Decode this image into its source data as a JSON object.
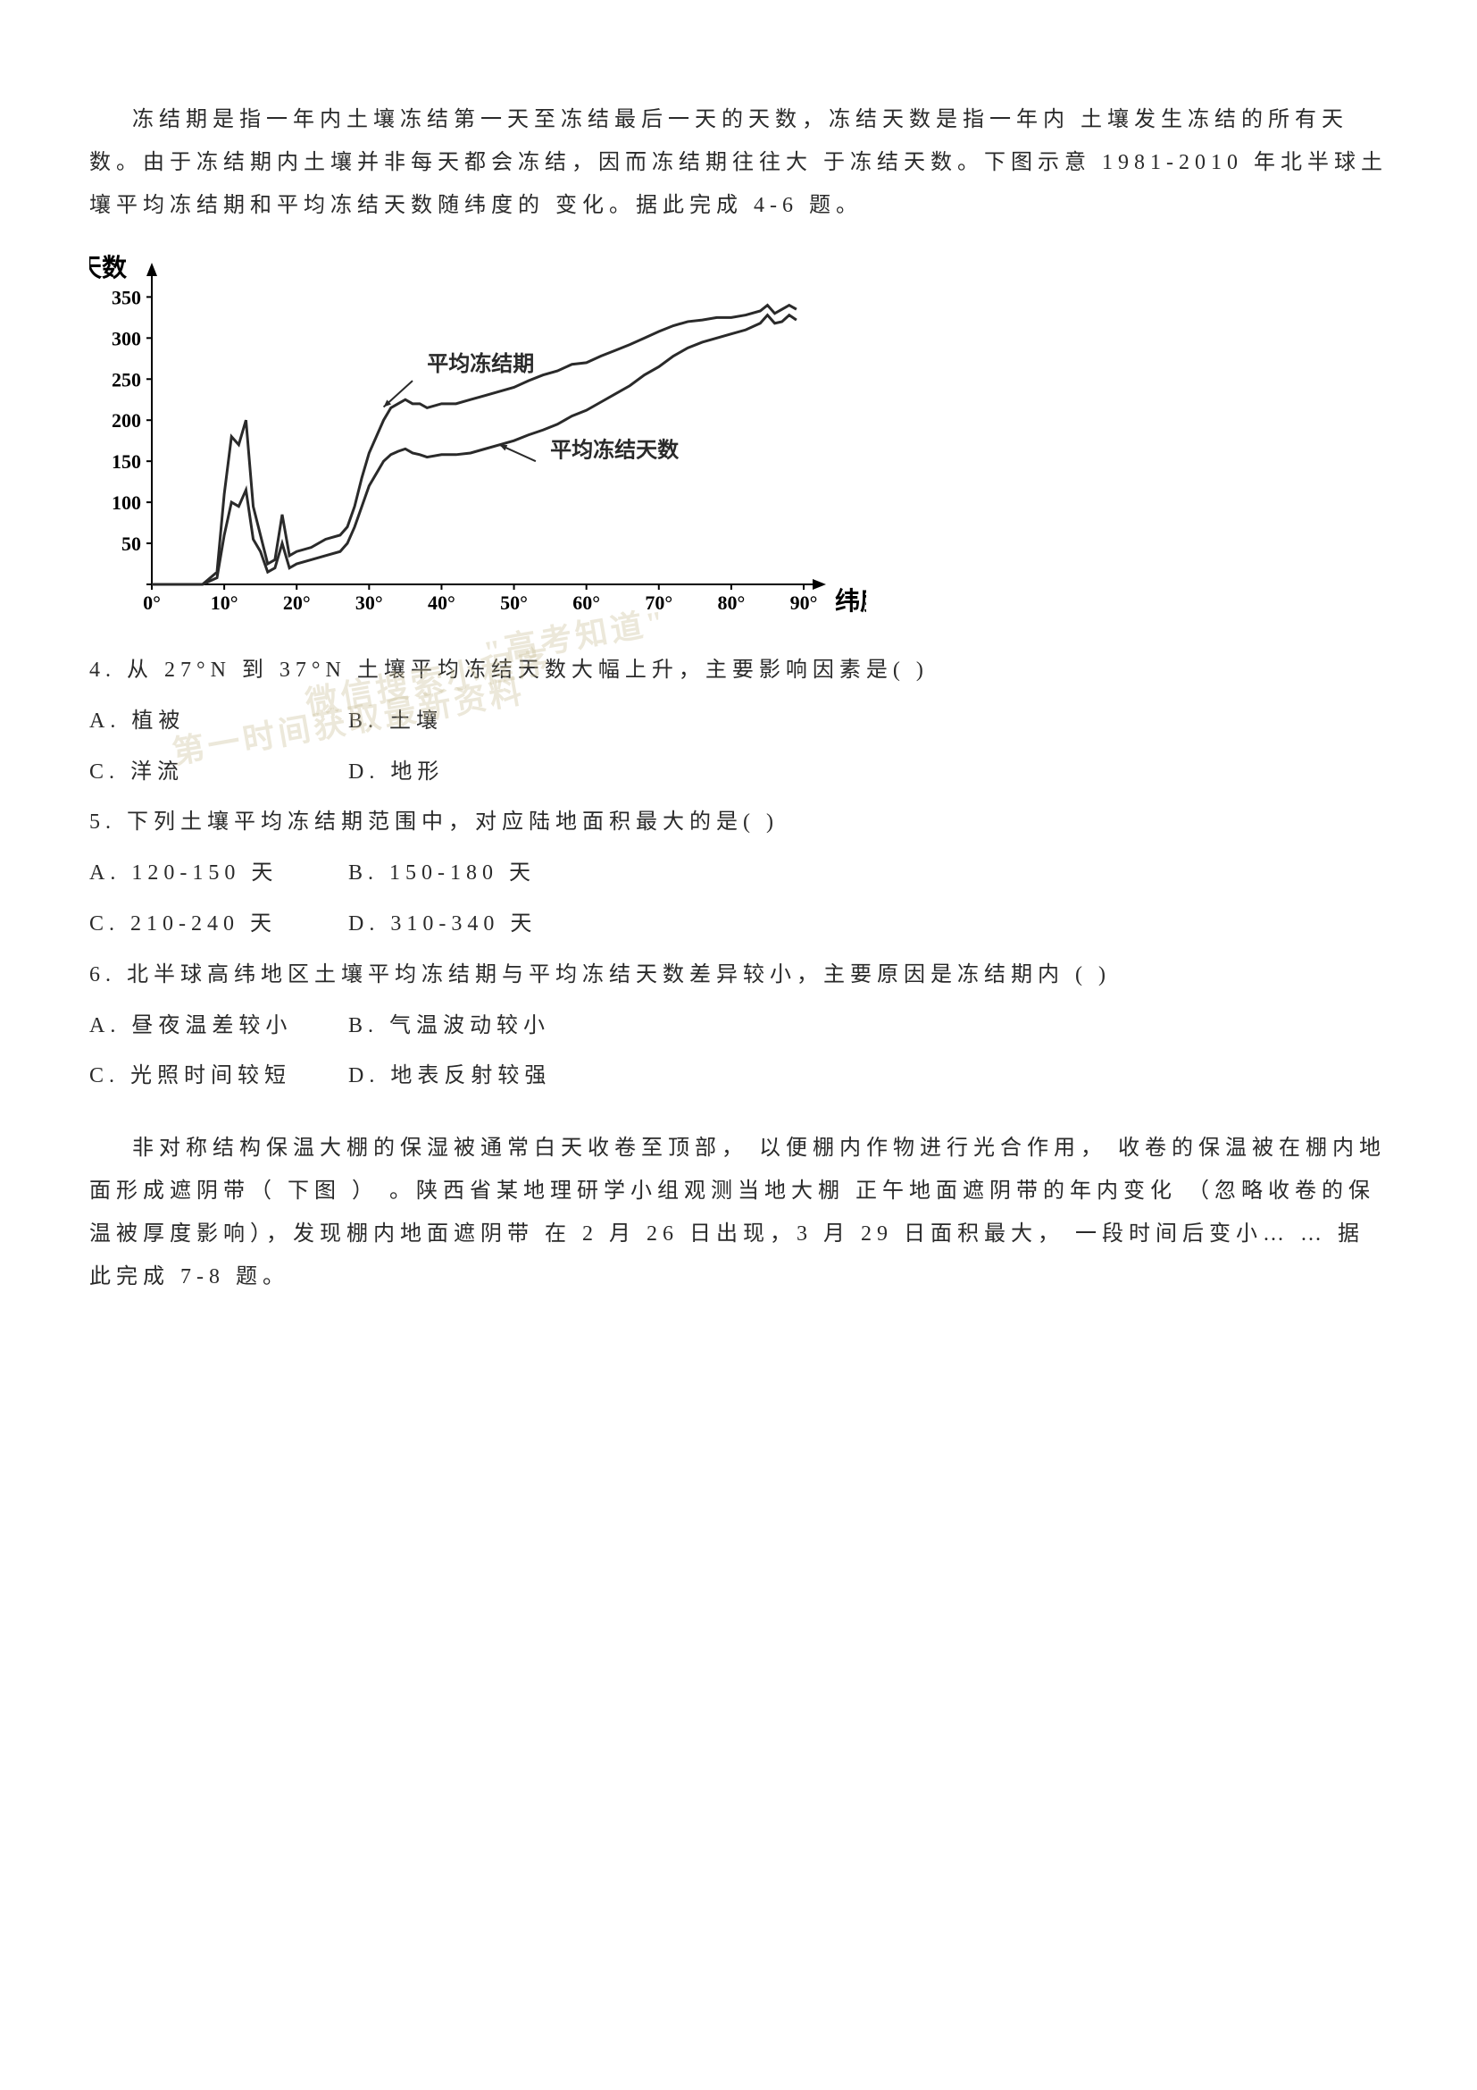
{
  "intro": "冻结期是指一年内土壤冻结第一天至冻结最后一天的天数，冻结天数是指一年内 土壤发生冻结的所有天数。由于冻结期内土壤并非每天都会冻结，因而冻结期往往大 于冻结天数。下图示意 1981-2010 年北半球土壤平均冻结期和平均冻结天数随纬度的 变化。据此完成 4-6 题。",
  "chart": {
    "type": "line",
    "y_axis_label": "天数",
    "x_axis_label": "纬度",
    "y_ticks": [
      0,
      50,
      100,
      150,
      200,
      250,
      300,
      350
    ],
    "x_ticks": [
      "0°",
      "10°",
      "20°",
      "30°",
      "40°",
      "50°",
      "60°",
      "70°",
      "80°",
      "90°"
    ],
    "ylim": [
      0,
      370
    ],
    "xlim": [
      0,
      90
    ],
    "background_color": "#ffffff",
    "axis_color": "#000000",
    "axis_width": 2,
    "label_fontsize": 28,
    "tick_fontsize": 22,
    "series": [
      {
        "name": "平均冻结期",
        "label_x": 38,
        "label_y": 260,
        "arrow_from": [
          36,
          248
        ],
        "arrow_to": [
          32,
          216
        ],
        "color": "#2a2a2a",
        "line_width": 3,
        "data": [
          [
            0,
            0
          ],
          [
            2,
            0
          ],
          [
            5,
            0
          ],
          [
            7,
            0
          ],
          [
            9,
            15
          ],
          [
            10,
            110
          ],
          [
            11,
            180
          ],
          [
            12,
            170
          ],
          [
            13,
            200
          ],
          [
            14,
            95
          ],
          [
            15,
            60
          ],
          [
            16,
            25
          ],
          [
            17,
            30
          ],
          [
            18,
            85
          ],
          [
            19,
            35
          ],
          [
            20,
            40
          ],
          [
            22,
            45
          ],
          [
            24,
            55
          ],
          [
            26,
            60
          ],
          [
            27,
            70
          ],
          [
            28,
            95
          ],
          [
            29,
            130
          ],
          [
            30,
            160
          ],
          [
            31,
            180
          ],
          [
            32,
            200
          ],
          [
            33,
            215
          ],
          [
            34,
            220
          ],
          [
            35,
            225
          ],
          [
            36,
            220
          ],
          [
            37,
            220
          ],
          [
            38,
            215
          ],
          [
            40,
            220
          ],
          [
            42,
            220
          ],
          [
            44,
            225
          ],
          [
            46,
            230
          ],
          [
            48,
            235
          ],
          [
            50,
            240
          ],
          [
            52,
            248
          ],
          [
            54,
            255
          ],
          [
            56,
            260
          ],
          [
            58,
            268
          ],
          [
            60,
            270
          ],
          [
            62,
            278
          ],
          [
            64,
            285
          ],
          [
            66,
            292
          ],
          [
            68,
            300
          ],
          [
            70,
            308
          ],
          [
            72,
            315
          ],
          [
            74,
            320
          ],
          [
            76,
            322
          ],
          [
            78,
            325
          ],
          [
            80,
            325
          ],
          [
            82,
            328
          ],
          [
            84,
            333
          ],
          [
            85,
            340
          ],
          [
            86,
            330
          ],
          [
            87,
            335
          ],
          [
            88,
            340
          ],
          [
            89,
            335
          ]
        ]
      },
      {
        "name": "平均冻结天数",
        "label_x": 55,
        "label_y": 155,
        "arrow_from": [
          53,
          150
        ],
        "arrow_to": [
          48,
          170
        ],
        "color": "#2a2a2a",
        "line_width": 3,
        "data": [
          [
            0,
            0
          ],
          [
            2,
            0
          ],
          [
            5,
            0
          ],
          [
            7,
            0
          ],
          [
            9,
            8
          ],
          [
            10,
            60
          ],
          [
            11,
            100
          ],
          [
            12,
            95
          ],
          [
            13,
            115
          ],
          [
            14,
            55
          ],
          [
            15,
            40
          ],
          [
            16,
            15
          ],
          [
            17,
            20
          ],
          [
            18,
            50
          ],
          [
            19,
            20
          ],
          [
            20,
            25
          ],
          [
            22,
            30
          ],
          [
            24,
            35
          ],
          [
            26,
            40
          ],
          [
            27,
            50
          ],
          [
            28,
            70
          ],
          [
            29,
            95
          ],
          [
            30,
            120
          ],
          [
            31,
            135
          ],
          [
            32,
            150
          ],
          [
            33,
            158
          ],
          [
            34,
            162
          ],
          [
            35,
            165
          ],
          [
            36,
            160
          ],
          [
            37,
            158
          ],
          [
            38,
            155
          ],
          [
            40,
            158
          ],
          [
            42,
            158
          ],
          [
            44,
            160
          ],
          [
            46,
            165
          ],
          [
            48,
            170
          ],
          [
            50,
            175
          ],
          [
            52,
            182
          ],
          [
            54,
            188
          ],
          [
            56,
            195
          ],
          [
            58,
            205
          ],
          [
            60,
            212
          ],
          [
            62,
            222
          ],
          [
            64,
            232
          ],
          [
            66,
            242
          ],
          [
            68,
            255
          ],
          [
            70,
            265
          ],
          [
            72,
            278
          ],
          [
            74,
            288
          ],
          [
            76,
            295
          ],
          [
            78,
            300
          ],
          [
            80,
            305
          ],
          [
            82,
            310
          ],
          [
            84,
            318
          ],
          [
            85,
            328
          ],
          [
            86,
            318
          ],
          [
            87,
            320
          ],
          [
            88,
            328
          ],
          [
            89,
            322
          ]
        ]
      }
    ]
  },
  "watermark": {
    "line1": "\"高考知道\"",
    "line2": "微信搜索小程序",
    "line3": "第一时间获取最新资料"
  },
  "q4": {
    "text": "4. 从 27°N 到 37°N   土壤平均冻结天数大幅上升，主要影响因素是(      )",
    "optA": "A. 植被",
    "optB": "B. 土壤",
    "optC": "C. 洋流",
    "optD": "D. 地形"
  },
  "q5": {
    "text": "5. 下列土壤平均冻结期范围中，对应陆地面积最大的是(      )",
    "optA": "A. 120-150    天",
    "optB": "B. 150-180    天",
    "optC": "C. 210-240    天",
    "optD": "D. 310-340    天"
  },
  "q6": {
    "text": "6. 北半球高纬地区土壤平均冻结期与平均冻结天数差异较小，主要原因是冻结期内 (      )",
    "optA": "A. 昼夜温差较小",
    "optB": "B. 气温波动较小",
    "optC": "C. 光照时间较短",
    "optD": "D. 地表反射较强"
  },
  "intro2": "非对称结构保温大棚的保湿被通常白天收卷至顶部， 以便棚内作物进行光合作用，  收卷的保温被在棚内地面形成遮阴带（ 下图 ） 。陕西省某地理研学小组观测当地大棚   正午地面遮阴带的年内变化  （忽略收卷的保温被厚度影响），发现棚内地面遮阴带   在 2 月 26 日出现，3 月 29  日面积最大， 一段时间后变小… …  据此完成 7-8 题。"
}
